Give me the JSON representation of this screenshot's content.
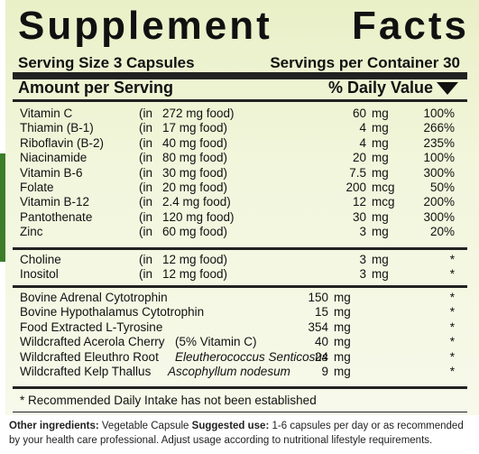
{
  "title": {
    "word1": "Supplement",
    "word2": "Facts"
  },
  "serving": {
    "size": "Serving Size 3 Capsules",
    "per_container": "Servings per Container 30"
  },
  "header": {
    "amount": "Amount per Serving",
    "daily_value": "% Daily Value"
  },
  "vitamins": [
    {
      "name": "Vitamin C",
      "in": "(in",
      "food": "272 mg food)",
      "amount": "60",
      "unit": "mg",
      "pct": "100%"
    },
    {
      "name": "Thiamin (B-1)",
      "in": "(in",
      "food": "17 mg food)",
      "amount": "4",
      "unit": "mg",
      "pct": "266%"
    },
    {
      "name": "Riboflavin (B-2)",
      "in": "(in",
      "food": "40 mg food)",
      "amount": "4",
      "unit": "mg",
      "pct": "235%"
    },
    {
      "name": "Niacinamide",
      "in": "(in",
      "food": "80 mg food)",
      "amount": "20",
      "unit": "mg",
      "pct": "100%"
    },
    {
      "name": "Vitamin B-6",
      "in": "(in",
      "food": "30 mg food)",
      "amount": "7.5",
      "unit": "mg",
      "pct": "300%"
    },
    {
      "name": "Folate",
      "in": "(in",
      "food": "20 mg food)",
      "amount": "200",
      "unit": "mcg",
      "pct": "50%"
    },
    {
      "name": "Vitamin B-12",
      "in": "(in",
      "food": "2.4 mg food)",
      "amount": "12",
      "unit": "mcg",
      "pct": "200%"
    },
    {
      "name": "Pantothenate",
      "in": "(in",
      "food": "120 mg food)",
      "amount": "30",
      "unit": "mg",
      "pct": "300%"
    },
    {
      "name": "Zinc",
      "in": "(in",
      "food": "60 mg food)",
      "amount": "3",
      "unit": "mg",
      "pct": "20%"
    }
  ],
  "others": [
    {
      "name": "Choline",
      "in": "(in",
      "food": "12 mg food)",
      "amount": "3",
      "unit": "mg",
      "pct": "*"
    },
    {
      "name": "Inositol",
      "in": "(in",
      "food": "12 mg food)",
      "amount": "3",
      "unit": "mg",
      "pct": "*"
    }
  ],
  "extracts": [
    {
      "name": "Bovine Adrenal Cytotrophin",
      "note": "",
      "amount": "150",
      "unit": "mg",
      "pct": "*"
    },
    {
      "name": "Bovine Hypothalamus Cytotrophin",
      "note": "",
      "amount": "15",
      "unit": "mg",
      "pct": "*"
    },
    {
      "name": "Food Extracted L-Tyrosine",
      "note": "",
      "amount": "354",
      "unit": "mg",
      "pct": "*"
    },
    {
      "name": "Wildcrafted Acerola Cherry",
      "note": "(5% Vitamin C)",
      "amount": "40",
      "unit": "mg",
      "pct": "*"
    },
    {
      "name": "Wildcrafted Eleuthro Root",
      "note": "Eleutherococcus Senticosus",
      "amount": "24",
      "unit": "mg",
      "pct": "*"
    },
    {
      "name": "Wildcrafted Kelp Thallus",
      "note": "Ascophyllum nodesum",
      "amount": "9",
      "unit": "mg",
      "pct": "*"
    }
  ],
  "footnote": "* Recommended Daily Intake has not been established",
  "other_ingredients": {
    "label": "Other ingredients:",
    "value": "Vegetable Capsule",
    "use_label": "Suggested use:",
    "use_value": "1-6 capsules per day or as recommended by your health care professional. Adjust usage according to nutritional lifestyle requirements."
  }
}
